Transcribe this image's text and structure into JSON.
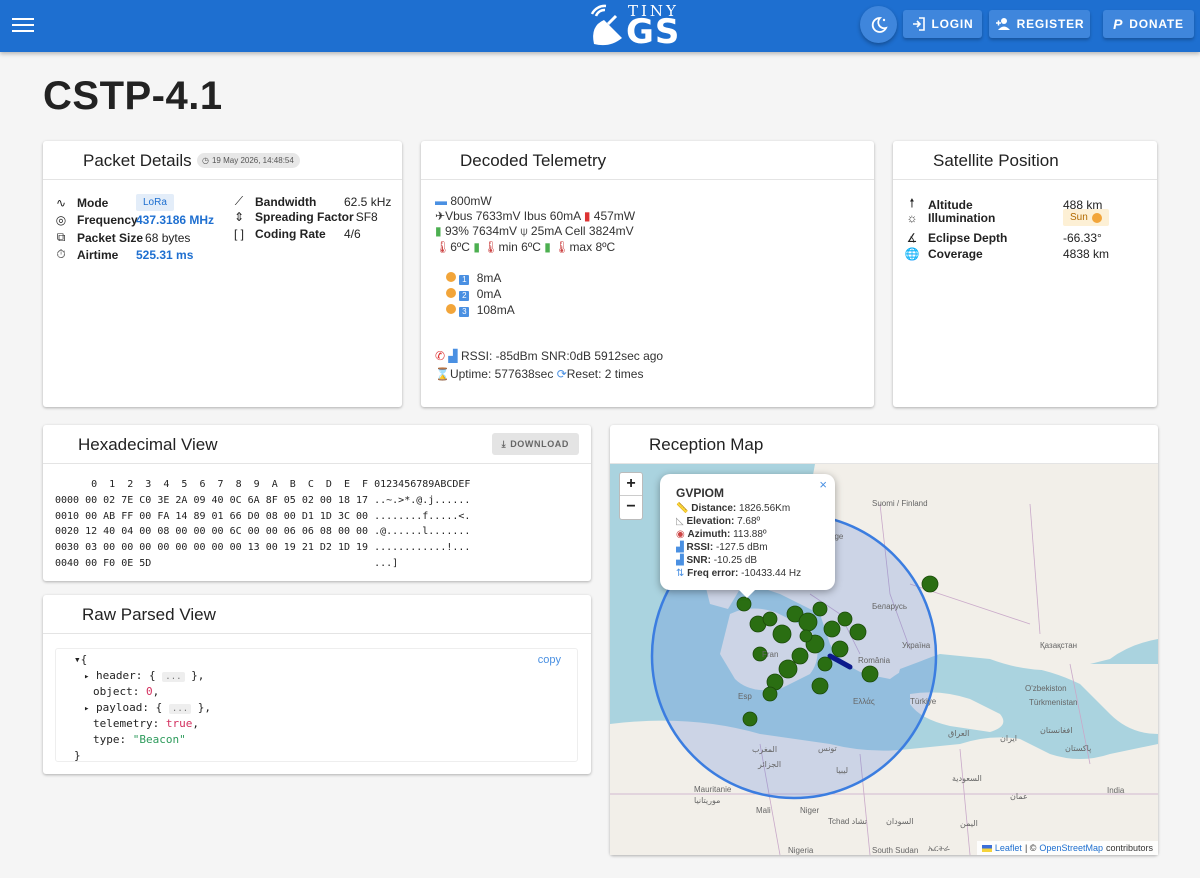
{
  "header": {
    "logo_top": "TINY",
    "logo_main": "GS",
    "login_label": "LOGIN",
    "register_label": "REGISTER",
    "donate_label": "DONATE"
  },
  "page": {
    "title": "CSTP-4.1"
  },
  "packet_details": {
    "title": "Packet Details",
    "date": "19 May 2026, 14:48:54",
    "mode_label": "Mode",
    "mode_value": "LoRa",
    "frequency_label": "Frequency",
    "frequency_value": "437.3186 MHz",
    "packet_size_label": "Packet Size",
    "packet_size_value": "68 bytes",
    "airtime_label": "Airtime",
    "airtime_value": "525.31 ms",
    "bandwidth_label": "Bandwidth",
    "bandwidth_value": "62.5 kHz",
    "sf_label": "Spreading Factor",
    "sf_value": "SF8",
    "coding_label": "Coding Rate",
    "coding_value": "4/6"
  },
  "telemetry": {
    "title": "Decoded Telemetry",
    "line1": "800mW",
    "line2a": "Vbus 7633mV Ibus 60mA",
    "line2b": "457mW",
    "line3a": "93% 7634mV",
    "line3b": "25mA Cell 3824mV",
    "line4a": "6ºC",
    "line4b": "min 6ºC",
    "line4c": "max 8ºC",
    "solar": [
      {
        "idx": "1",
        "value": "8mA"
      },
      {
        "idx": "2",
        "value": "0mA"
      },
      {
        "idx": "3",
        "value": "108mA"
      }
    ],
    "rssi_line": "RSSI: -85dBm SNR:0dB 5912sec ago",
    "uptime": "Uptime: 577638sec",
    "reset": "Reset: 2 times"
  },
  "satellite_position": {
    "title": "Satellite Position",
    "altitude_label": "Altitude",
    "altitude_value": "488 km",
    "illumination_label": "Illumination",
    "illumination_value": "Sun",
    "eclipse_label": "Eclipse Depth",
    "eclipse_value": "-66.33°",
    "coverage_label": "Coverage",
    "coverage_value": "4838 km"
  },
  "hex_view": {
    "title": "Hexadecimal View",
    "download_label": "DOWNLOAD",
    "lines": [
      "      0  1  2  3  4  5  6  7  8  9  A  B  C  D  E  F 0123456789ABCDEF",
      "0000 00 02 7E C0 3E 2A 09 40 0C 6A 8F 05 02 00 18 17 ..~.>*.@.j......",
      "0010 00 AB FF 00 FA 14 89 01 66 D0 08 00 D1 1D 3C 00 ........f.....<.",
      "0020 12 40 04 00 08 00 00 00 6C 00 00 06 06 08 00 00 .@......l.......",
      "0030 03 00 00 00 00 00 00 00 00 13 00 19 21 D2 1D 19 ............!...",
      "0040 00 F0 0E 5D                                     ...]"
    ]
  },
  "raw_view": {
    "title": "Raw Parsed View",
    "copy_label": "copy",
    "open_brace": "{",
    "header_key": "header:",
    "open_obj": "{",
    "collapsed": "...",
    "close_obj": "},",
    "object_key": "object:",
    "object_value": "0",
    "payload_key": "payload:",
    "telemetry_key": "telemetry:",
    "telemetry_value": "true",
    "type_key": "type:",
    "type_value": "\"Beacon\"",
    "close_brace": "}"
  },
  "map": {
    "title": "Reception Map",
    "zoom_in": "+",
    "zoom_out": "−",
    "popup": {
      "station": "GVPIOM",
      "close": "×",
      "distance_label": "Distance:",
      "distance_value": "1826.56Km",
      "elevation_label": "Elevation:",
      "elevation_value": "7.68º",
      "azimuth_label": "Azimuth:",
      "azimuth_value": "113.88º",
      "rssi_label": "RSSI:",
      "rssi_value": "-127.5 dBm",
      "snr_label": "SNR:",
      "snr_value": "-10.25 dB",
      "freq_label": "Freq error:",
      "freq_value": "-10433.44 Hz"
    },
    "labels": {
      "finland": "Suomi / Finland",
      "belarus": "Беларусь",
      "ukraine": "Україна",
      "kazakhstan": "Қазақстан",
      "romania": "România",
      "uzbekistan": "O'zbekiston",
      "turkmenistan": "Türkmenistan",
      "turkiye": "Türkiye",
      "ellas": "Ελλάς",
      "afghanistan": "افغانستان",
      "iran": "ایران",
      "iraq": "العراق",
      "pakistan": "پاکستان",
      "saudi": "السعودية",
      "oman": "عمان",
      "india": "India",
      "yemen": "اليمن",
      "libya": "ليبيا",
      "algeria": "الجزائر",
      "mauritanie": "Mauritanie",
      "mauritanie_ar": "موريتانيا",
      "mali": "Mali",
      "niger": "Niger",
      "tchad": "Tchad تشاد",
      "sudan": "السودان",
      "nigeria": "Nigeria",
      "south_sudan": "South Sudan",
      "eritrea": "ኤርትራ",
      "espana": "Esp",
      "france": "Fran",
      "tunisia": "تونس",
      "morocco": "المغرب",
      "sverige": "rige"
    },
    "attribution_leaflet": "Leaflet",
    "attribution_sep": "| ©",
    "attribution_osm": "OpenStreetMap",
    "attribution_tail": "contributors"
  }
}
